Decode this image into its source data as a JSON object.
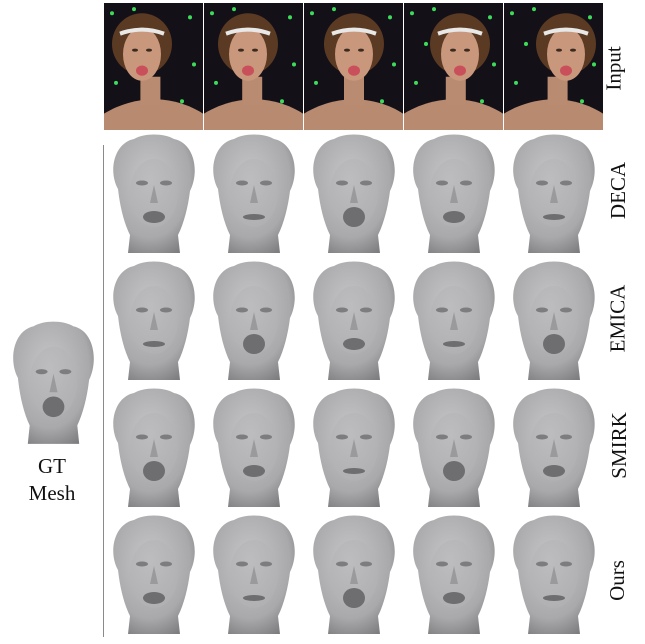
{
  "figure": {
    "row_labels": [
      "Input",
      "DECA",
      "EMICA",
      "SMIRK",
      "Ours"
    ],
    "gt_label_lines": [
      "GT",
      "Mesh"
    ],
    "columns": 5,
    "colors": {
      "mesh": "#a9a9ab",
      "mesh_shadow": "#7d7d80",
      "photo_background": "#141018",
      "marker": "#3ddc5a",
      "skin": "#c9977c",
      "hair": "#5a3a22"
    },
    "icons": {
      "input_cell": "subject-photo",
      "mesh_cell": "face-mesh-render"
    }
  }
}
